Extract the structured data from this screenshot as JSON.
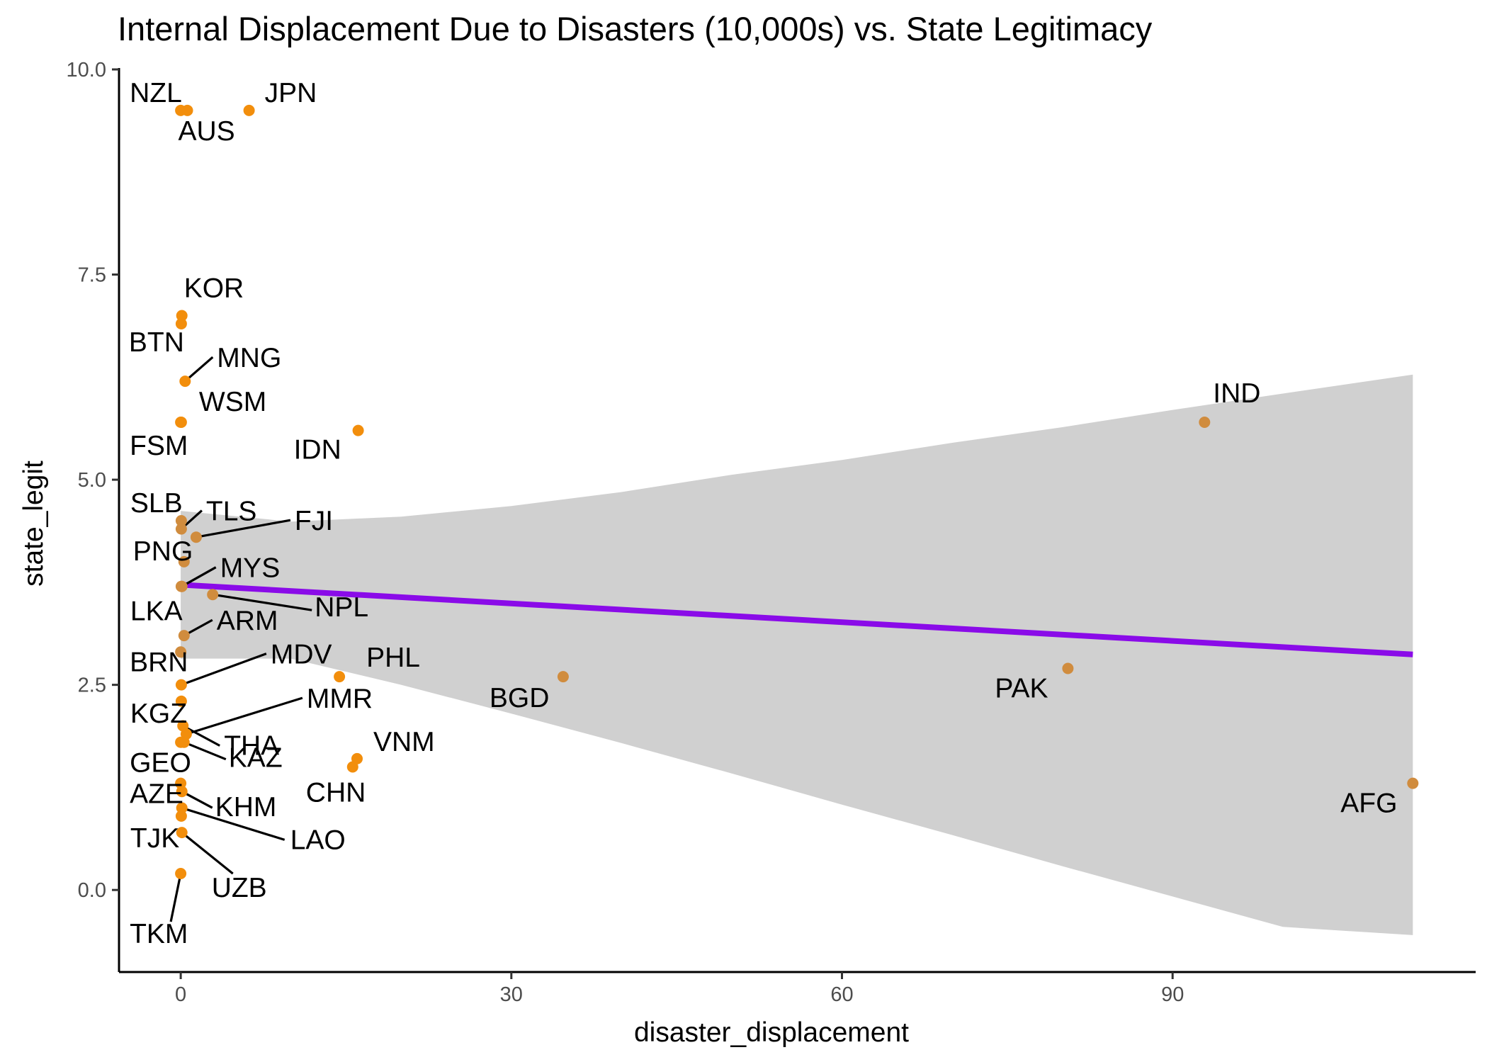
{
  "chart_data": {
    "type": "scatter",
    "title": "Internal Displacement Due to Disasters (10,000s) vs. State Legitimacy",
    "xlabel": "disaster_displacement",
    "ylabel": "state_legit",
    "xlim": [
      -5.6,
      117.5
    ],
    "ylim": [
      -1.0,
      10.0
    ],
    "x_ticks": [
      0,
      30,
      60,
      90
    ],
    "x_tick_labels": [
      "0",
      "30",
      "60",
      "90"
    ],
    "y_ticks": [
      0,
      2.5,
      5,
      7.5,
      10
    ],
    "y_tick_labels": [
      "0.0",
      "2.5",
      "5.0",
      "7.5",
      "10.0"
    ],
    "grid": false,
    "legend": "none",
    "point_color": "#f28e0c",
    "point_color_in_band": "#d08c3e",
    "fit_line_color": "#8a0be8",
    "confidence_band_color": "#d0d0d0",
    "points": [
      {
        "label": "NZL",
        "x": 0.0,
        "y": 9.5
      },
      {
        "label": "AUS",
        "x": 0.6,
        "y": 9.5
      },
      {
        "label": "JPN",
        "x": 6.2,
        "y": 9.5
      },
      {
        "label": "KOR",
        "x": 0.1,
        "y": 7.0
      },
      {
        "label": "BTN",
        "x": 0.05,
        "y": 6.9
      },
      {
        "label": "MNG",
        "x": 0.4,
        "y": 6.2
      },
      {
        "label": "WSM",
        "x": 0.05,
        "y": 5.7
      },
      {
        "label": "FSM",
        "x": 0.0,
        "y": 5.7
      },
      {
        "label": "IDN",
        "x": 16.1,
        "y": 5.6
      },
      {
        "label": "IND",
        "x": 92.9,
        "y": 5.7
      },
      {
        "label": "SLB",
        "x": 0.05,
        "y": 4.5
      },
      {
        "label": "TLS",
        "x": 0.05,
        "y": 4.4
      },
      {
        "label": "FJI",
        "x": 1.4,
        "y": 4.3
      },
      {
        "label": "PNG",
        "x": 0.3,
        "y": 4.0
      },
      {
        "label": "MYS",
        "x": 0.1,
        "y": 3.7
      },
      {
        "label": "NPL",
        "x": 2.9,
        "y": 3.6
      },
      {
        "label": "LKA",
        "x": 0.05,
        "y": 3.7
      },
      {
        "label": "ARM",
        "x": 0.3,
        "y": 3.1
      },
      {
        "label": "BRN",
        "x": 0.0,
        "y": 2.9
      },
      {
        "label": "MDV",
        "x": 0.05,
        "y": 2.5
      },
      {
        "label": "PHL",
        "x": 14.4,
        "y": 2.6
      },
      {
        "label": "BGD",
        "x": 34.7,
        "y": 2.6
      },
      {
        "label": "PAK",
        "x": 80.5,
        "y": 2.7
      },
      {
        "label": "KGZ",
        "x": 0.05,
        "y": 2.3
      },
      {
        "label": "THA",
        "x": 0.2,
        "y": 2.0
      },
      {
        "label": "MMR",
        "x": 0.5,
        "y": 1.9
      },
      {
        "label": "KAZ",
        "x": 0.3,
        "y": 1.8
      },
      {
        "label": "GEO",
        "x": 0.0,
        "y": 1.8
      },
      {
        "label": "VNM",
        "x": 16.0,
        "y": 1.6
      },
      {
        "label": "CHN",
        "x": 15.6,
        "y": 1.5
      },
      {
        "label": "AFG",
        "x": 111.8,
        "y": 1.3
      },
      {
        "label": "AZE",
        "x": 0.0,
        "y": 1.3
      },
      {
        "label": "KHM",
        "x": 0.1,
        "y": 1.2
      },
      {
        "label": "LAO",
        "x": 0.1,
        "y": 1.0
      },
      {
        "label": "TJK",
        "x": 0.05,
        "y": 0.9
      },
      {
        "label": "UZB",
        "x": 0.1,
        "y": 0.7
      },
      {
        "label": "TKM",
        "x": 0.0,
        "y": 0.2
      }
    ],
    "fit_line": {
      "x": [
        0,
        111.8
      ],
      "y": [
        3.72,
        2.87
      ]
    },
    "confidence_band": {
      "x": [
        0,
        10,
        20,
        30,
        40,
        50,
        60,
        70,
        80,
        90,
        100,
        111.8
      ],
      "upper": [
        4.62,
        4.49,
        4.55,
        4.68,
        4.85,
        5.06,
        5.24,
        5.45,
        5.64,
        5.85,
        6.05,
        6.28
      ],
      "lower": [
        2.82,
        2.82,
        2.5,
        2.15,
        1.79,
        1.42,
        1.04,
        0.67,
        0.29,
        -0.08,
        -0.45,
        -0.55
      ]
    }
  }
}
